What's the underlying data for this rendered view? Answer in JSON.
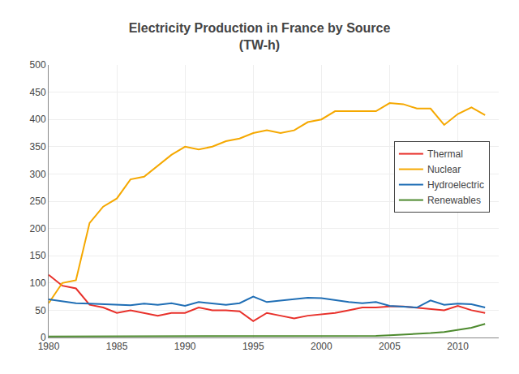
{
  "chart_data": {
    "type": "line",
    "title": "Electricity Production in France by Source\n(TW-h)",
    "xlim": [
      1980,
      2013
    ],
    "xticks": [
      1980,
      1985,
      1990,
      1995,
      2000,
      2005,
      2010
    ],
    "ylim": [
      0,
      500
    ],
    "yticks": [
      0,
      50,
      100,
      150,
      200,
      250,
      300,
      350,
      400,
      450,
      500
    ],
    "grid": true,
    "legend": "upper right",
    "series": [
      {
        "name": "Thermal",
        "color": "#e8302a",
        "x": [
          1980,
          1981,
          1982,
          1983,
          1984,
          1985,
          1986,
          1987,
          1988,
          1989,
          1990,
          1991,
          1992,
          1993,
          1994,
          1995,
          1996,
          1997,
          1998,
          1999,
          2000,
          2001,
          2002,
          2003,
          2004,
          2005,
          2006,
          2007,
          2008,
          2009,
          2010,
          2011,
          2012
        ],
        "values": [
          115,
          95,
          90,
          60,
          55,
          45,
          50,
          45,
          40,
          45,
          45,
          55,
          50,
          50,
          48,
          30,
          45,
          40,
          35,
          40,
          42,
          45,
          50,
          55,
          55,
          57,
          57,
          55,
          52,
          50,
          58,
          50,
          45
        ]
      },
      {
        "name": "Nuclear",
        "color": "#f5a800",
        "x": [
          1980,
          1981,
          1982,
          1983,
          1984,
          1985,
          1986,
          1987,
          1989,
          1990,
          1991,
          1992,
          1993,
          1994,
          1995,
          1996,
          1997,
          1998,
          1999,
          2000,
          2001,
          2002,
          2003,
          2004,
          2005,
          2006,
          2007,
          2008,
          2009,
          2010,
          2011,
          2012
        ],
        "values": [
          63,
          100,
          105,
          210,
          240,
          255,
          290,
          295,
          335,
          350,
          345,
          350,
          360,
          365,
          375,
          380,
          375,
          380,
          395,
          400,
          415,
          415,
          415,
          415,
          430,
          428,
          420,
          420,
          390,
          410,
          422,
          408
        ]
      },
      {
        "name": "Hydroelectric",
        "color": "#1f6eb5",
        "x": [
          1980,
          1981,
          1982,
          1983,
          1984,
          1985,
          1986,
          1987,
          1988,
          1989,
          1990,
          1991,
          1992,
          1993,
          1994,
          1995,
          1996,
          1997,
          1998,
          1999,
          2000,
          2001,
          2002,
          2003,
          2004,
          2005,
          2006,
          2007,
          2008,
          2009,
          2010,
          2011,
          2012
        ],
        "values": [
          70,
          67,
          63,
          62,
          61,
          60,
          59,
          62,
          60,
          63,
          58,
          65,
          62,
          60,
          63,
          75,
          65,
          68,
          70,
          73,
          72,
          68,
          65,
          63,
          65,
          58,
          57,
          55,
          68,
          60,
          62,
          61,
          55
        ]
      },
      {
        "name": "Renewables",
        "color": "#4d8a2e",
        "x": [
          1980,
          1981,
          1982,
          1983,
          1984,
          1985,
          1986,
          1987,
          1988,
          1989,
          1990,
          1991,
          1992,
          1993,
          1994,
          1995,
          1996,
          1997,
          1998,
          1999,
          2000,
          2001,
          2002,
          2003,
          2004,
          2005,
          2006,
          2007,
          2008,
          2009,
          2010,
          2011,
          2012
        ],
        "values": [
          2,
          2,
          2,
          2,
          2,
          2,
          2,
          2,
          2,
          2,
          2,
          2,
          2,
          2,
          2,
          2,
          2,
          2,
          2,
          2,
          2,
          2,
          2,
          3,
          3,
          4,
          5,
          6,
          8,
          10,
          14,
          18,
          25
        ]
      }
    ]
  }
}
